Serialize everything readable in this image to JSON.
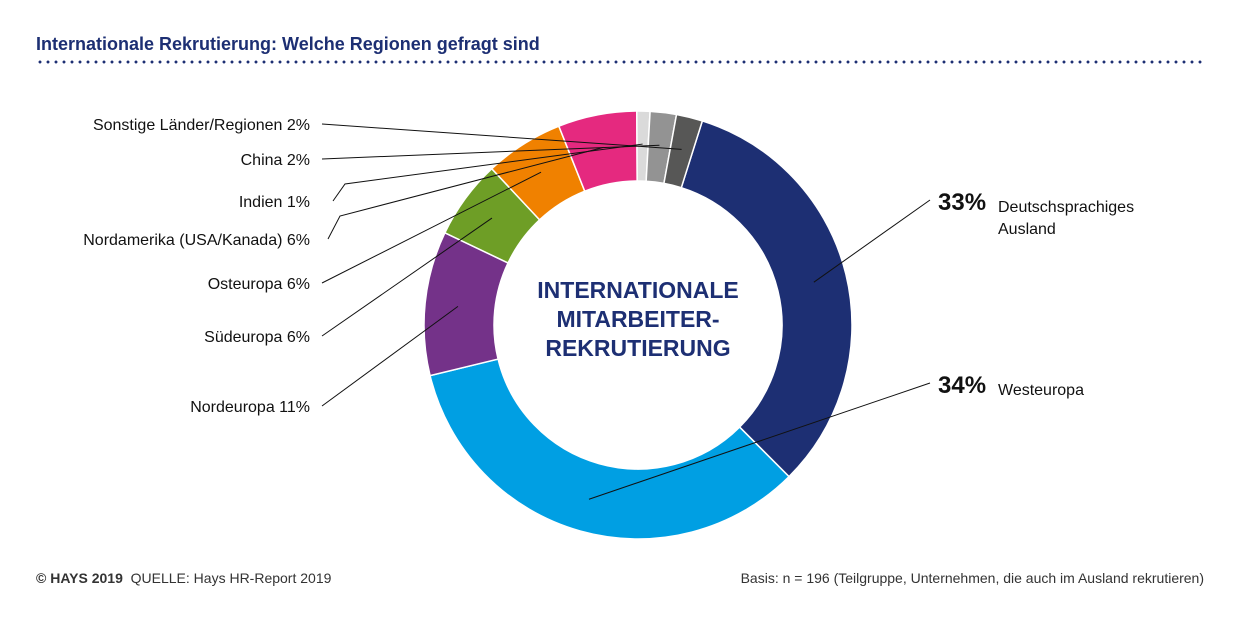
{
  "header": {
    "title": "Internationale Rekrutierung:  Welche Regionen gefragt sind"
  },
  "center_label": [
    "INTERNATIONALE",
    "MITARBEITER-",
    "REKRUTIERUNG"
  ],
  "footer": {
    "copyright": "© HAYS 2019",
    "source": "QUELLE: Hays HR-Report 2019",
    "basis": "Basis: n = 196 (Teilgruppe, Unternehmen, die auch im Ausland rekrutieren)"
  },
  "chart_data": {
    "type": "pie",
    "variant": "donut",
    "slices": [
      {
        "label": "Deutschsprachiges Ausland",
        "label_lines": [
          "Deutschsprachiges",
          "Ausland"
        ],
        "value": 33,
        "value_text": "33%",
        "color": "#1d2f73"
      },
      {
        "label": "Westeuropa",
        "label_lines": [
          "Westeuropa"
        ],
        "value": 34,
        "value_text": "34%",
        "color": "#009fe3"
      },
      {
        "label": "Nordeuropa 11%",
        "value": 11,
        "color": "#743289"
      },
      {
        "label": "Südeuropa 6%",
        "value": 6,
        "color": "#6e9e26"
      },
      {
        "label": "Osteuropa 6%",
        "value": 6,
        "color": "#f08100"
      },
      {
        "label": "Nordamerika (USA/Kanada) 6%",
        "value": 6,
        "color": "#e5297f"
      },
      {
        "label": "Indien 1%",
        "value": 1,
        "color": "#dadada"
      },
      {
        "label": "China 2%",
        "value": 2,
        "color": "#939393"
      },
      {
        "label": "Sonstige Länder/Regionen 2%",
        "value": 2,
        "color": "#575756"
      }
    ]
  }
}
